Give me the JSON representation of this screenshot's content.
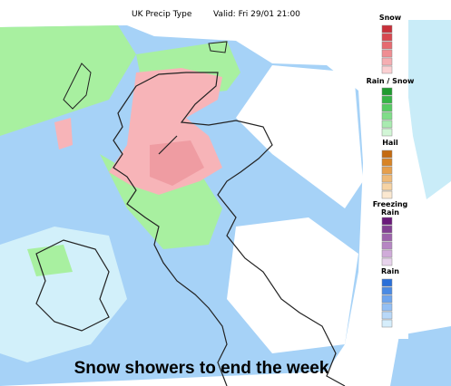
{
  "header": {
    "title": "UK Precip Type",
    "valid": "Valid: Fri 29/01 21:00"
  },
  "legend": [
    {
      "label": "Snow"
    },
    {
      "label": "Rain / Snow"
    },
    {
      "label": "Hail"
    },
    {
      "label": "Freezing Rain"
    },
    {
      "label": "Rain"
    }
  ],
  "caption": "Snow showers to end the week"
}
